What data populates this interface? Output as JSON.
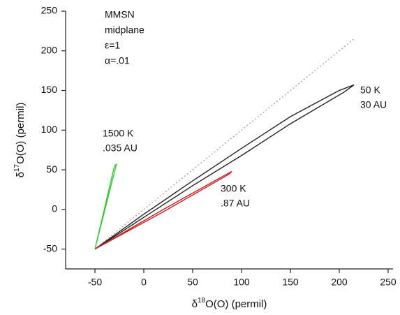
{
  "chart_data": {
    "type": "line",
    "x_label_parts": [
      "δ",
      "18",
      "O(O) (permil)"
    ],
    "y_label_parts": [
      "δ",
      "17",
      "O(O) (permil)"
    ],
    "xlim": [
      -80,
      255
    ],
    "ylim": [
      -75,
      250
    ],
    "xticks": [
      -50,
      0,
      50,
      100,
      150,
      200,
      250
    ],
    "yticks": [
      -50,
      0,
      50,
      100,
      150,
      200,
      250
    ],
    "grid": false,
    "notes": [
      "MMSN",
      "midplane",
      "ε=1",
      "α=.01"
    ],
    "series": [
      {
        "color": "#999999",
        "dashed": true,
        "x": [
          -50,
          215
        ],
        "y": [
          -50,
          215
        ],
        "labels": []
      },
      {
        "color": "#222222",
        "dashed": false,
        "x": [
          -50,
          0,
          50,
          100,
          150,
          200,
          215,
          205,
          150,
          100,
          50,
          0,
          -50
        ],
        "y": [
          -50,
          -6,
          36,
          77,
          117,
          150,
          157,
          148,
          108,
          68,
          30,
          -10,
          -50
        ],
        "labels": [
          "50 K",
          "30 AU"
        ]
      },
      {
        "color": "#cc2222",
        "dashed": false,
        "x": [
          -50,
          20,
          90,
          88,
          20,
          -50
        ],
        "y": [
          -50,
          0,
          48,
          45,
          -3,
          -50
        ],
        "labels": [
          "300 K",
          ".87 AU"
        ]
      },
      {
        "color": "#33cc33",
        "dashed": false,
        "x": [
          -50,
          -28,
          -30,
          -50
        ],
        "y": [
          -50,
          57,
          55,
          -50
        ],
        "labels": [
          "1500 K",
          ".035 AU"
        ]
      }
    ]
  }
}
